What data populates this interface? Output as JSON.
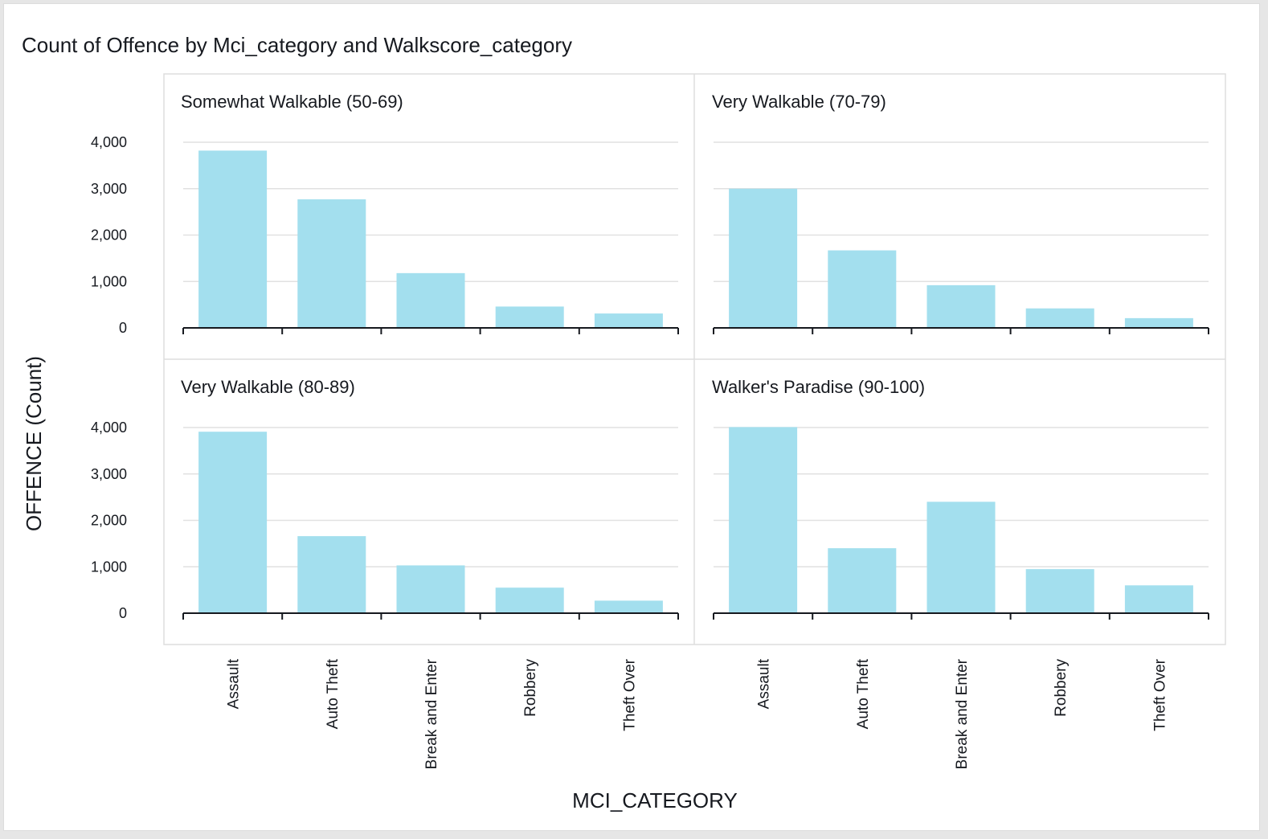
{
  "title": "Count of Offence by Mci_category and Walkscore_category",
  "colors": {
    "bar": "#a3dfee",
    "grid": "#e1e1e1",
    "panel_border": "#dedede",
    "axis": "#16191f",
    "text": "#16191f"
  },
  "chart_data": {
    "type": "bar",
    "layout": "small-multiples 2x2",
    "xlabel": "MCI_CATEGORY",
    "ylabel": "OFFENCE (Count)",
    "categories": [
      "Assault",
      "Auto Theft",
      "Break and Enter",
      "Robbery",
      "Theft Over"
    ],
    "yticks": [
      "4,000",
      "3,000",
      "2,000",
      "1,000",
      "0"
    ],
    "ylim": [
      0,
      4000
    ],
    "grid": true,
    "legend": "none",
    "panels": [
      {
        "name": "Somewhat Walkable (50-69)",
        "values": [
          3820,
          2770,
          1180,
          460,
          310
        ]
      },
      {
        "name": "Very Walkable (70-79)",
        "values": [
          3000,
          1670,
          920,
          420,
          210
        ]
      },
      {
        "name": "Very Walkable (80-89)",
        "values": [
          3910,
          1660,
          1030,
          550,
          270
        ]
      },
      {
        "name": "Walker's Paradise (90-100)",
        "values": [
          4010,
          1400,
          2400,
          950,
          600
        ]
      }
    ]
  }
}
